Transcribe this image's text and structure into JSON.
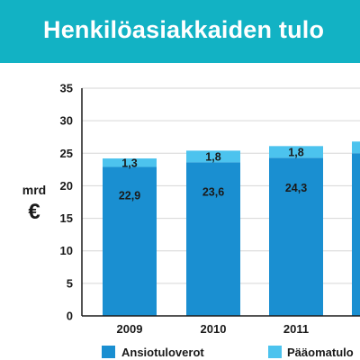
{
  "header": {
    "title": "Henkilöasiakkaiden tulo"
  },
  "colors": {
    "header_bg": "#12b2c4",
    "ansiotulo": "#1a8fd1",
    "paaoma": "#4cc3ee",
    "gridline": "#d6d6d6",
    "axis": "#1a1a1a"
  },
  "chart_data": {
    "type": "bar",
    "stacked": true,
    "title": "Henkilöasiakkaiden tulo",
    "ylabel": "mrd",
    "ylabel_unit": "€",
    "xlabel": "",
    "categories": [
      "2009",
      "2010",
      "2011",
      ""
    ],
    "ylim": [
      0,
      35
    ],
    "yticks": [
      "0",
      "5",
      "10",
      "15",
      "20",
      "25",
      "30",
      "35"
    ],
    "grid": true,
    "legend": "bottom",
    "series": [
      {
        "name": "Ansiotuloverot",
        "color": "#1a8fd1",
        "values": [
          22.9,
          23.6,
          24.3,
          25
        ],
        "labels": [
          "22,9",
          "23,6",
          "24,3",
          ""
        ]
      },
      {
        "name": "Pääomatulo",
        "color": "#4cc3ee",
        "values": [
          1.3,
          1.8,
          1.8,
          1.8
        ],
        "labels": [
          "1,3",
          "1,8",
          "1,8",
          ""
        ]
      }
    ]
  }
}
